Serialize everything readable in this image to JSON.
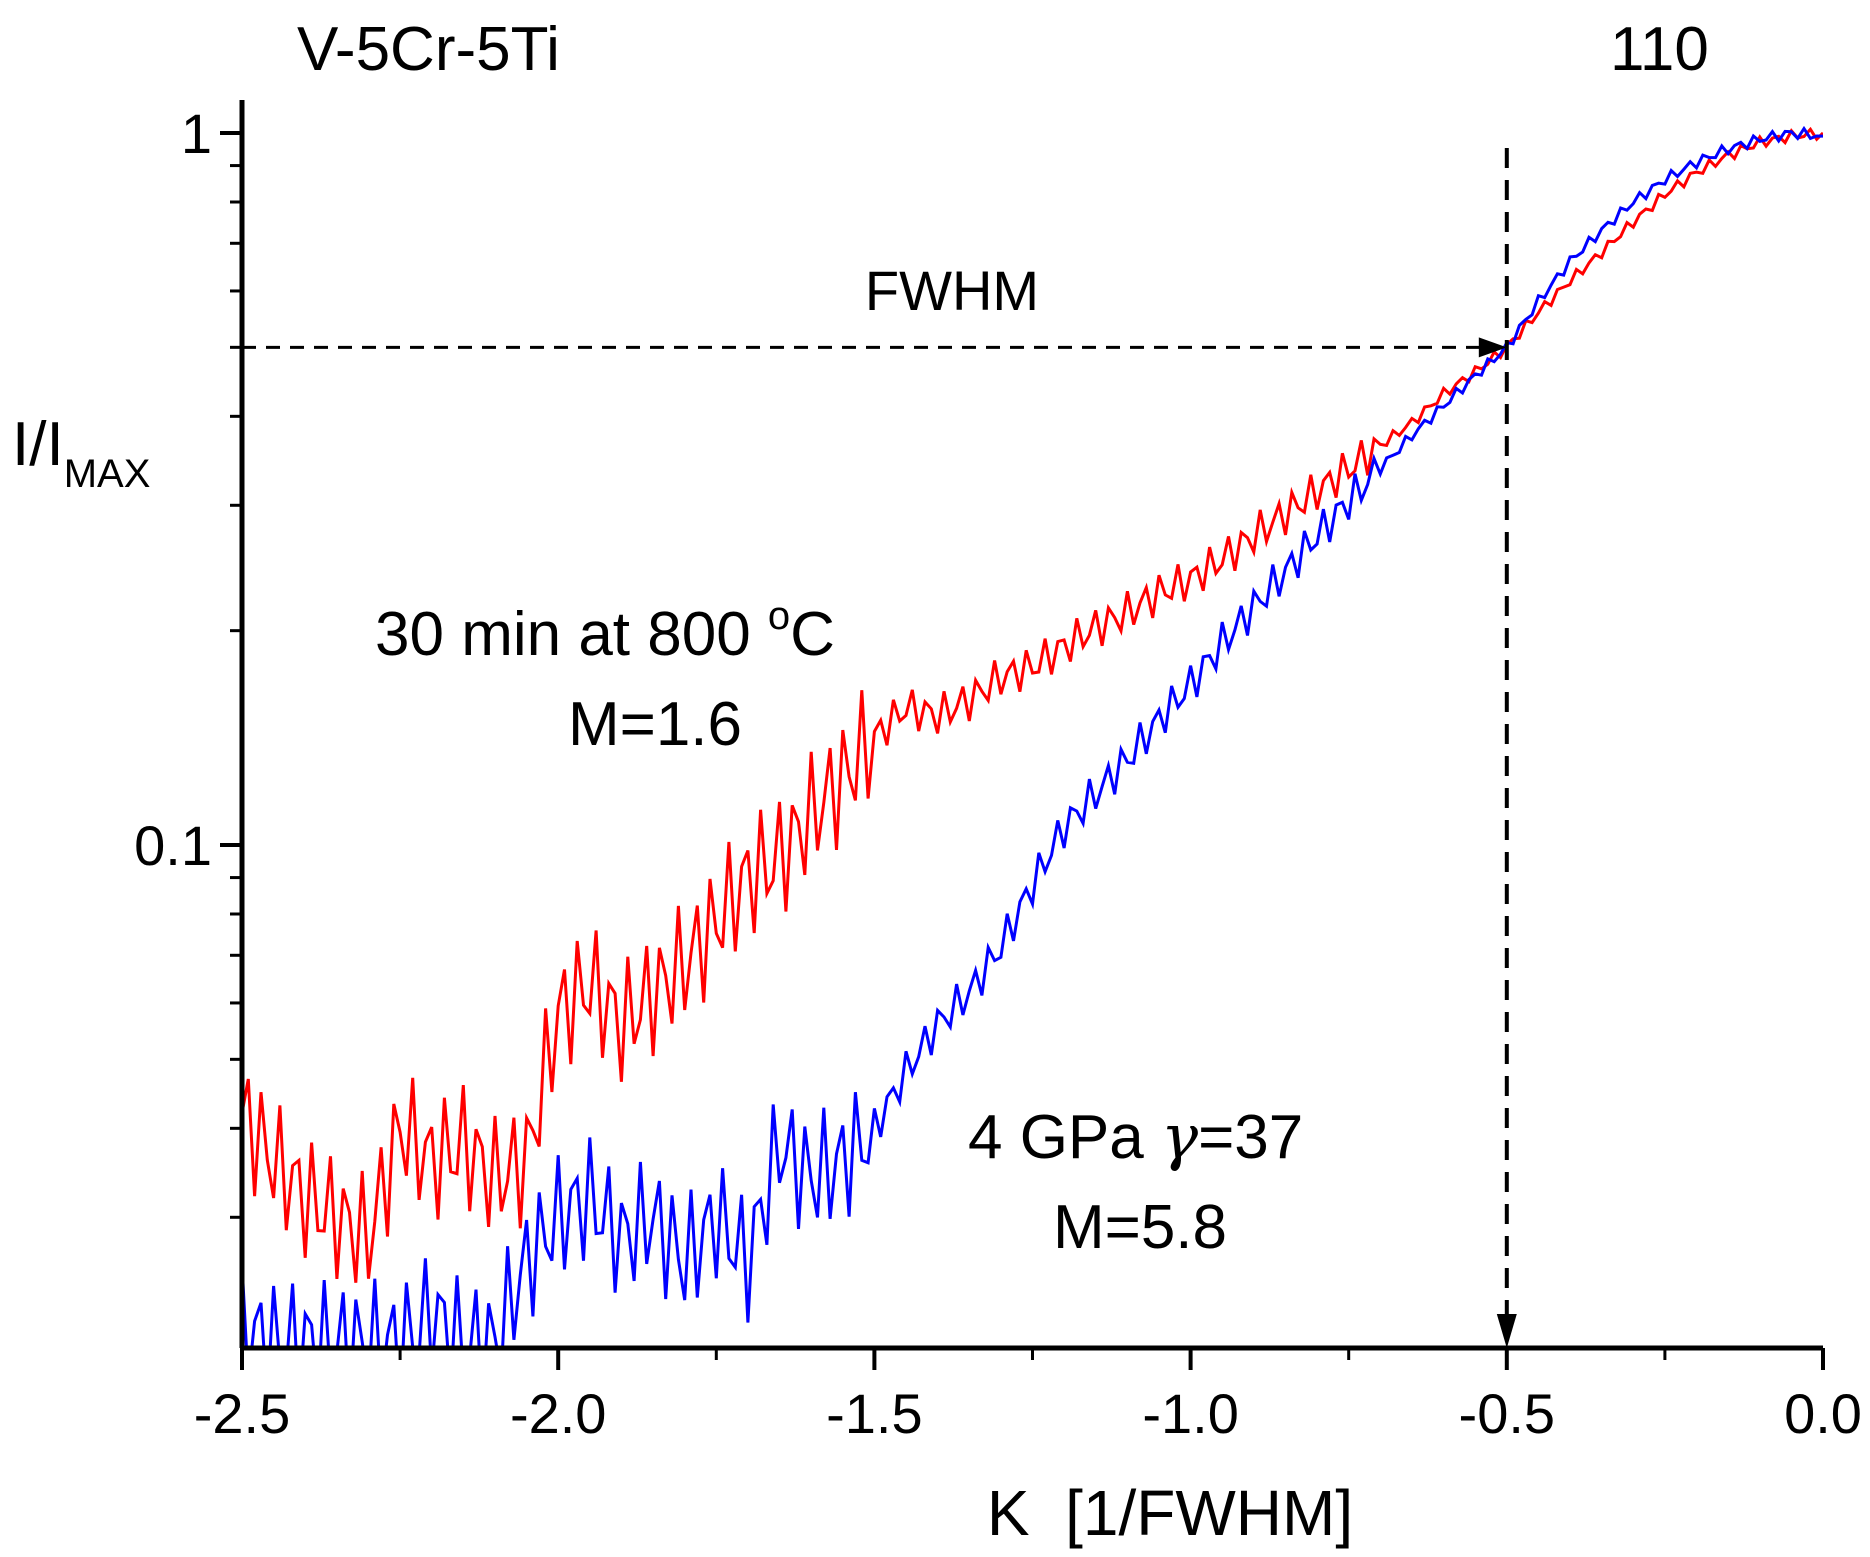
{
  "chart_data": {
    "type": "line",
    "title_left": "V-5Cr-5Ti",
    "title_right": "110",
    "xlabel": "K  [1/FWHM]",
    "ylabel": {
      "main": "I/I",
      "sub": "MAX"
    },
    "xlim": [
      -2.5,
      0.0
    ],
    "ylim": [
      0.02,
      1.05
    ],
    "yscale": "log",
    "x_ticks": [
      -2.5,
      -2.0,
      -1.5,
      -1.0,
      -0.5,
      0.0
    ],
    "x_tick_labels": [
      "-2.5",
      "-2.0",
      "-1.5",
      "-1.0",
      "-0.5",
      "0.0"
    ],
    "y_ticks": [
      0.1,
      1
    ],
    "y_tick_labels": [
      "0.1",
      "1"
    ],
    "fwhm": {
      "label": "FWHM",
      "x": -0.5,
      "y": 0.5
    },
    "annotations": {
      "red": {
        "line1": "30 min at 800 ",
        "sup": "o",
        "unit": "C",
        "line2": "M=1.6"
      },
      "blue": {
        "line1": "4 GPa ",
        "gamma": "γ",
        "line1b": "=37",
        "line2": "M=5.8"
      }
    },
    "series": [
      {
        "name": "30 min at 800 °C, M=1.6",
        "color": "#ff0000",
        "x": [
          -2.5,
          -2.45,
          -2.4,
          -2.35,
          -2.3,
          -2.25,
          -2.2,
          -2.15,
          -2.1,
          -2.05,
          -2.0,
          -1.95,
          -1.9,
          -1.85,
          -1.8,
          -1.75,
          -1.7,
          -1.65,
          -1.6,
          -1.55,
          -1.5,
          -1.45,
          -1.4,
          -1.35,
          -1.3,
          -1.25,
          -1.2,
          -1.15,
          -1.1,
          -1.05,
          -1.0,
          -0.95,
          -0.9,
          -0.85,
          -0.8,
          -0.75,
          -0.7,
          -0.65,
          -0.6,
          -0.55,
          -0.5,
          -0.45,
          -0.4,
          -0.35,
          -0.3,
          -0.25,
          -0.2,
          -0.15,
          -0.1,
          -0.05,
          0.0
        ],
        "values": [
          0.042,
          0.036,
          0.032,
          0.03,
          0.028,
          0.04,
          0.036,
          0.038,
          0.034,
          0.036,
          0.058,
          0.064,
          0.056,
          0.062,
          0.068,
          0.078,
          0.09,
          0.096,
          0.11,
          0.124,
          0.142,
          0.156,
          0.152,
          0.16,
          0.172,
          0.178,
          0.19,
          0.202,
          0.212,
          0.226,
          0.236,
          0.252,
          0.272,
          0.292,
          0.314,
          0.338,
          0.364,
          0.392,
          0.43,
          0.462,
          0.5,
          0.56,
          0.62,
          0.68,
          0.75,
          0.82,
          0.88,
          0.93,
          0.97,
          0.99,
          1.0
        ]
      },
      {
        "name": "4 GPa γ=37, M=5.8",
        "color": "#0000ff",
        "x": [
          -2.5,
          -2.45,
          -2.4,
          -2.35,
          -2.3,
          -2.25,
          -2.2,
          -2.15,
          -2.1,
          -2.05,
          -2.0,
          -1.95,
          -1.9,
          -1.85,
          -1.8,
          -1.75,
          -1.7,
          -1.65,
          -1.6,
          -1.55,
          -1.5,
          -1.45,
          -1.4,
          -1.35,
          -1.3,
          -1.25,
          -1.2,
          -1.15,
          -1.1,
          -1.05,
          -1.0,
          -0.95,
          -0.9,
          -0.85,
          -0.8,
          -0.75,
          -0.7,
          -0.65,
          -0.6,
          -0.55,
          -0.5,
          -0.45,
          -0.4,
          -0.35,
          -0.3,
          -0.25,
          -0.2,
          -0.15,
          -0.1,
          -0.05,
          0.0
        ],
        "values": [
          0.021,
          0.02,
          0.02,
          0.02,
          0.02,
          0.02,
          0.022,
          0.02,
          0.02,
          0.026,
          0.03,
          0.032,
          0.028,
          0.03,
          0.026,
          0.03,
          0.026,
          0.038,
          0.034,
          0.036,
          0.04,
          0.048,
          0.056,
          0.062,
          0.072,
          0.088,
          0.106,
          0.118,
          0.132,
          0.15,
          0.168,
          0.192,
          0.216,
          0.242,
          0.272,
          0.304,
          0.338,
          0.376,
          0.414,
          0.456,
          0.5,
          0.58,
          0.66,
          0.73,
          0.8,
          0.86,
          0.91,
          0.95,
          0.98,
          1.0,
          0.99
        ]
      }
    ]
  }
}
